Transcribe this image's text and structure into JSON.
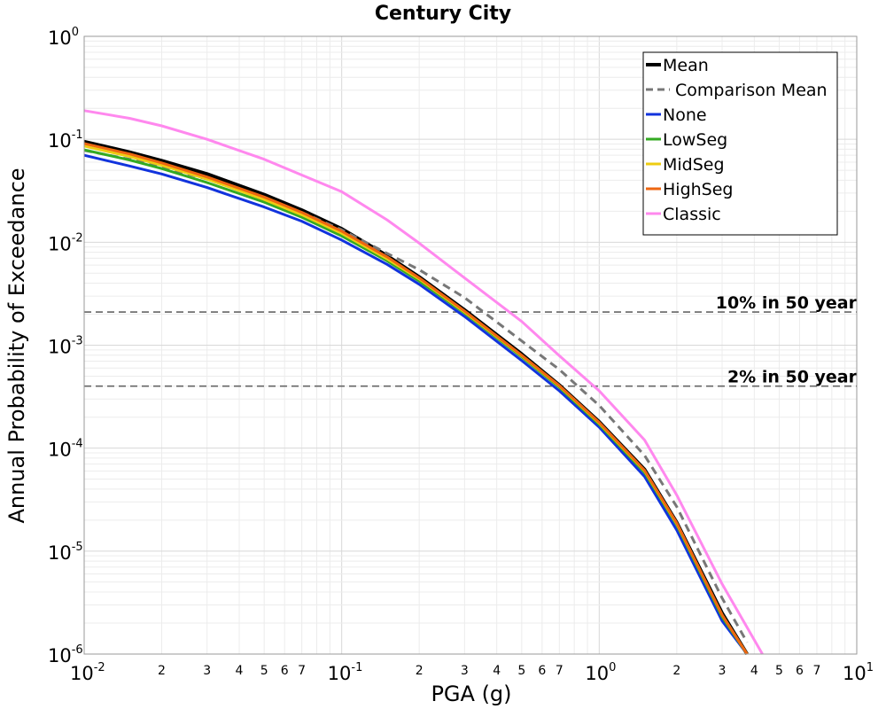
{
  "chart_data": {
    "type": "line",
    "title": "Century City",
    "xlabel": "PGA (g)",
    "ylabel": "Annual Probability of Exceedance",
    "xscale": "log",
    "yscale": "log",
    "xlim": [
      0.01,
      10
    ],
    "ylim": [
      1e-06,
      1
    ],
    "grid": true,
    "legend_position": "top-right",
    "x_major_ticks": [
      {
        "base": "10",
        "exp": "-2"
      },
      {
        "base": "10",
        "exp": "-1"
      },
      {
        "base": "10",
        "exp": "0"
      },
      {
        "base": "10",
        "exp": "1"
      }
    ],
    "y_major_ticks": [
      {
        "base": "10",
        "exp": "0"
      },
      {
        "base": "10",
        "exp": "-1"
      },
      {
        "base": "10",
        "exp": "-2"
      },
      {
        "base": "10",
        "exp": "-3"
      },
      {
        "base": "10",
        "exp": "-4"
      },
      {
        "base": "10",
        "exp": "-5"
      },
      {
        "base": "10",
        "exp": "-6"
      }
    ],
    "x_minor_tick_labels": [
      "2",
      "3",
      "4",
      "5",
      "6",
      "7"
    ],
    "reference_lines": [
      {
        "label": "10% in 50 year",
        "y": 0.0021
      },
      {
        "label": "2% in 50 year",
        "y": 0.0004
      }
    ],
    "x": [
      0.01,
      0.015,
      0.02,
      0.03,
      0.05,
      0.07,
      0.1,
      0.15,
      0.2,
      0.3,
      0.5,
      0.7,
      1.0,
      1.5,
      2.0,
      3.0,
      3.75,
      4.3
    ],
    "series": [
      {
        "name": "Mean",
        "color": "#000000",
        "dash": "solid",
        "width": 4,
        "values": [
          0.095,
          0.075,
          0.062,
          0.046,
          0.029,
          0.0205,
          0.0135,
          0.0074,
          0.0046,
          0.0022,
          0.00082,
          0.00041,
          0.00018,
          6.2e-05,
          1.9e-05,
          2.5e-06,
          1e-06,
          null
        ]
      },
      {
        "name": "Comparison Mean",
        "color": "#777777",
        "dash": "dashed",
        "width": 3,
        "values": [
          0.078,
          0.064,
          0.054,
          0.041,
          0.0265,
          0.0195,
          0.0132,
          0.0078,
          0.0054,
          0.0029,
          0.0011,
          0.00058,
          0.00026,
          8.5e-05,
          2.7e-05,
          3.5e-06,
          1.3e-06,
          null
        ]
      },
      {
        "name": "None",
        "color": "#1133dd",
        "dash": "solid",
        "width": 3,
        "values": [
          0.07,
          0.055,
          0.046,
          0.034,
          0.022,
          0.016,
          0.0105,
          0.0061,
          0.0039,
          0.0019,
          0.00071,
          0.00036,
          0.00016,
          5.3e-05,
          1.6e-05,
          2.1e-06,
          1e-06,
          null
        ]
      },
      {
        "name": "LowSeg",
        "color": "#33aa22",
        "dash": "solid",
        "width": 3,
        "values": [
          0.079,
          0.063,
          0.052,
          0.038,
          0.0245,
          0.0175,
          0.0115,
          0.0066,
          0.0042,
          0.00205,
          0.00077,
          0.00039,
          0.00017,
          5.8e-05,
          1.8e-05,
          2.3e-06,
          1e-06,
          null
        ]
      },
      {
        "name": "MidSeg",
        "color": "#eecc11",
        "dash": "solid",
        "width": 3,
        "values": [
          0.086,
          0.068,
          0.056,
          0.041,
          0.026,
          0.0185,
          0.0122,
          0.0069,
          0.0044,
          0.0021,
          0.00079,
          0.0004,
          0.000175,
          6e-05,
          1.85e-05,
          2.4e-06,
          1e-06,
          null
        ]
      },
      {
        "name": "HighSeg",
        "color": "#ee6611",
        "dash": "solid",
        "width": 3,
        "values": [
          0.091,
          0.072,
          0.059,
          0.043,
          0.0275,
          0.0195,
          0.0128,
          0.0072,
          0.0045,
          0.00215,
          0.0008,
          0.000405,
          0.000178,
          6.1e-05,
          1.88e-05,
          2.4e-06,
          1e-06,
          null
        ]
      },
      {
        "name": "Classic",
        "color": "#ff88ee",
        "dash": "solid",
        "width": 3,
        "values": [
          0.19,
          0.16,
          0.135,
          0.1,
          0.064,
          0.045,
          0.031,
          0.0165,
          0.0098,
          0.0045,
          0.0017,
          0.00079,
          0.00036,
          0.00012,
          3.5e-05,
          4.8e-06,
          null,
          1e-06
        ]
      }
    ]
  }
}
